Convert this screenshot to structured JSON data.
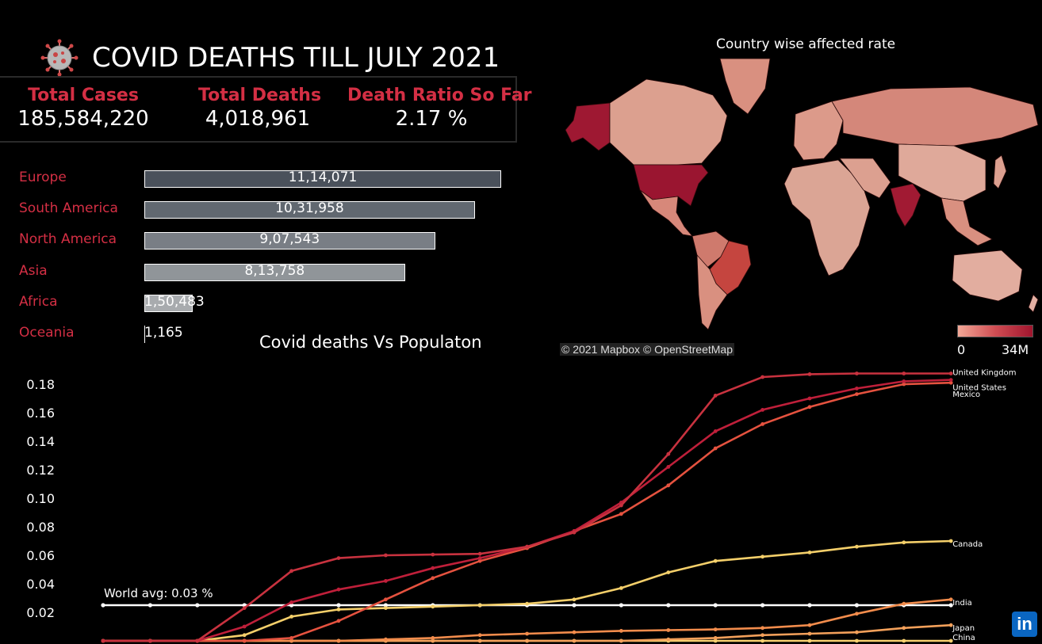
{
  "title": "COVID DEATHS TILL JULY 2021",
  "kpis": [
    {
      "label": "Total Cases",
      "value": "185,584,220"
    },
    {
      "label": "Total Deaths",
      "value": "4,018,961"
    },
    {
      "label": "Death Ratio So Far",
      "value": "2.17 %"
    }
  ],
  "colors": {
    "accent": "#d42f44",
    "background": "#000000",
    "bar_dark": "#4a515b",
    "bar_light": "#bfc2c3"
  },
  "icons": [
    "virus-icon",
    "linkedin-icon"
  ],
  "map": {
    "title": "Country wise affected rate",
    "credit": "© 2021 Mapbox © OpenStreetMap",
    "legend_min": "0",
    "legend_max": "34M",
    "highlighted_countries": [
      "United States",
      "India",
      "Brazil",
      "Alaska"
    ]
  },
  "line_chart_title": "Covid deaths Vs Populaton",
  "world_avg_label": "World avg: 0.03 %",
  "brand": {
    "linkedin": "in"
  },
  "chart_data": [
    {
      "type": "bar",
      "orientation": "horizontal",
      "categories": [
        "Europe",
        "South America",
        "North America",
        "Asia",
        "Africa",
        "Oceania"
      ],
      "values": [
        1114071,
        1031958,
        907543,
        813758,
        150483,
        1165
      ],
      "value_labels": [
        "11,14,071",
        "10,31,958",
        "9,07,543",
        "8,13,758",
        "1,50,483",
        "1,165"
      ]
    },
    {
      "type": "line",
      "title": "Covid deaths Vs Populaton",
      "y_ticks": [
        "0.02",
        "0.04",
        "0.06",
        "0.08",
        "0.10",
        "0.12",
        "0.14",
        "0.16",
        "0.18"
      ],
      "ylim": [
        0,
        0.19
      ],
      "n_points": 19,
      "reference_line": {
        "label": "World avg: 0.03 %",
        "value": 0.025
      },
      "series": [
        {
          "name": "United Kingdom",
          "color": "#c8323f",
          "values": [
            0,
            0,
            0,
            0.023,
            0.049,
            0.058,
            0.06,
            0.0605,
            0.061,
            0.066,
            0.076,
            0.095,
            0.131,
            0.172,
            0.185,
            0.187,
            0.1875,
            0.1875,
            0.1875
          ]
        },
        {
          "name": "United States",
          "color": "#bf1f3a",
          "values": [
            0,
            0,
            0,
            0.01,
            0.027,
            0.036,
            0.042,
            0.051,
            0.058,
            0.066,
            0.077,
            0.097,
            0.122,
            0.147,
            0.162,
            0.17,
            0.177,
            0.182,
            0.183
          ]
        },
        {
          "name": "Mexico",
          "color": "#e5523f",
          "values": [
            0,
            0,
            0,
            0,
            0.002,
            0.014,
            0.029,
            0.044,
            0.056,
            0.065,
            0.077,
            0.089,
            0.109,
            0.135,
            0.152,
            0.164,
            0.173,
            0.18,
            0.181
          ]
        },
        {
          "name": "Canada",
          "color": "#f4cf6a",
          "values": [
            0,
            0,
            0,
            0.004,
            0.017,
            0.022,
            0.023,
            0.024,
            0.025,
            0.026,
            0.029,
            0.037,
            0.048,
            0.056,
            0.059,
            0.062,
            0.066,
            0.069,
            0.07
          ]
        },
        {
          "name": "India",
          "color": "#f28c4c",
          "values": [
            0,
            0,
            0,
            0,
            0,
            0,
            0.001,
            0.002,
            0.004,
            0.005,
            0.006,
            0.007,
            0.0075,
            0.008,
            0.009,
            0.011,
            0.019,
            0.026,
            0.029
          ]
        },
        {
          "name": "Japan",
          "color": "#f3a05a",
          "values": [
            0,
            0,
            0,
            0,
            0,
            0,
            0,
            0,
            0,
            0,
            0,
            0,
            0.001,
            0.002,
            0.004,
            0.005,
            0.006,
            0.009,
            0.011
          ]
        },
        {
          "name": "China",
          "color": "#f7d070",
          "values": [
            0,
            0,
            0,
            0,
            0,
            0,
            0,
            0,
            0,
            0,
            0,
            0,
            0,
            0,
            0,
            0,
            0,
            0,
            0
          ]
        }
      ]
    }
  ]
}
